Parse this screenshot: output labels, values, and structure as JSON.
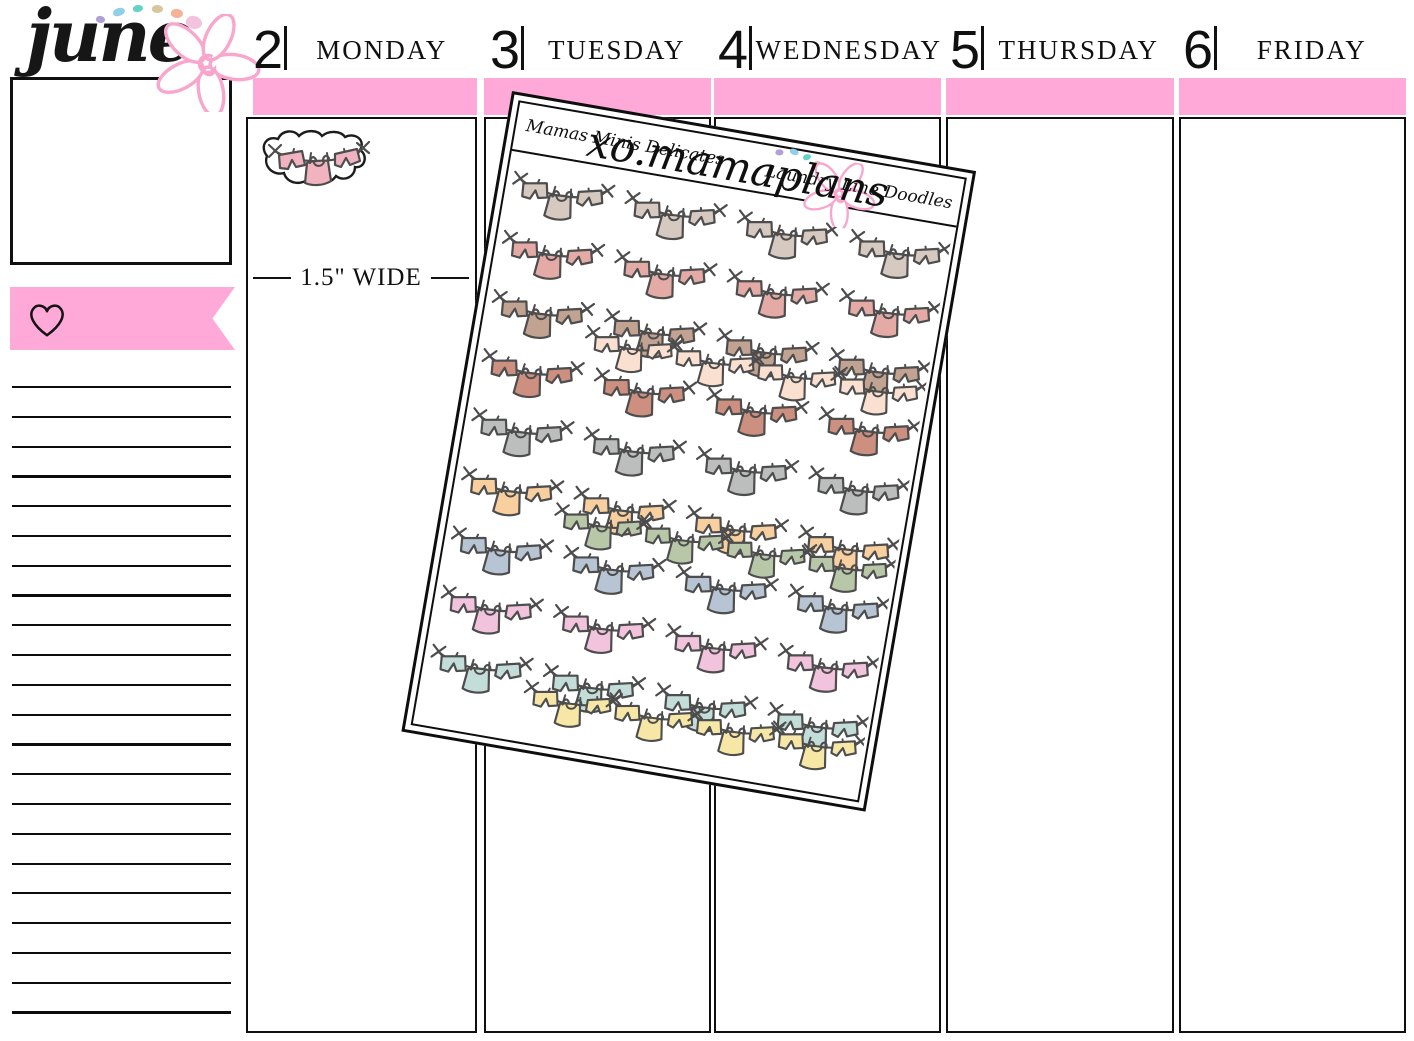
{
  "colors": {
    "pink_accent": "#ffa9d8",
    "flower_pink": "#f9a6cd",
    "ink": "#101010",
    "doodle_outline": "#4d4d4d",
    "single_sticker_fill": "#f2b3c1",
    "confetti": [
      "#b1a0d8",
      "#8fd0e8",
      "#63d3c6",
      "#d9c69e",
      "#f5b295",
      "#f3c3de"
    ]
  },
  "month": {
    "title": "june"
  },
  "days": [
    {
      "number": "2",
      "name": "MONDAY"
    },
    {
      "number": "3",
      "name": "TUESDAY"
    },
    {
      "number": "4",
      "name": "WEDNESDAY"
    },
    {
      "number": "5",
      "name": "THURSDAY"
    },
    {
      "number": "6",
      "name": "FRIDAY"
    }
  ],
  "sidebar": {
    "ruled_line_count": 22,
    "heart_icon": "heart-outline",
    "flag_color": "#ffa9d8"
  },
  "size_note": {
    "text": "1.5\" WIDE"
  },
  "sticker_sheet": {
    "brand_left": "Mamas Minis Delicates",
    "brand_center": "xo.mamaplans",
    "brand_right": "Laundry Line Doodles",
    "sticker_motif": "clothesline-with-bows-pants-tank-shorts",
    "columns_per_row": 4,
    "rows": [
      {
        "color": "#d6c9c0",
        "offset": false
      },
      {
        "color": "#e4aaa6",
        "offset": false
      },
      {
        "color": "#c2a392",
        "offset": false
      },
      {
        "color": "#f9e0d1",
        "offset": true
      },
      {
        "color": "#cd9080",
        "offset": false
      },
      {
        "color": "#bcbebe",
        "offset": false
      },
      {
        "color": "#f8cf9e",
        "offset": false
      },
      {
        "color": "#b7c7a7",
        "offset": true
      },
      {
        "color": "#b7c4d3",
        "offset": false
      },
      {
        "color": "#f2c3dc",
        "offset": false
      },
      {
        "color": "#c3ded9",
        "offset": false
      },
      {
        "color": "#f7e7a6",
        "offset": true
      }
    ]
  }
}
